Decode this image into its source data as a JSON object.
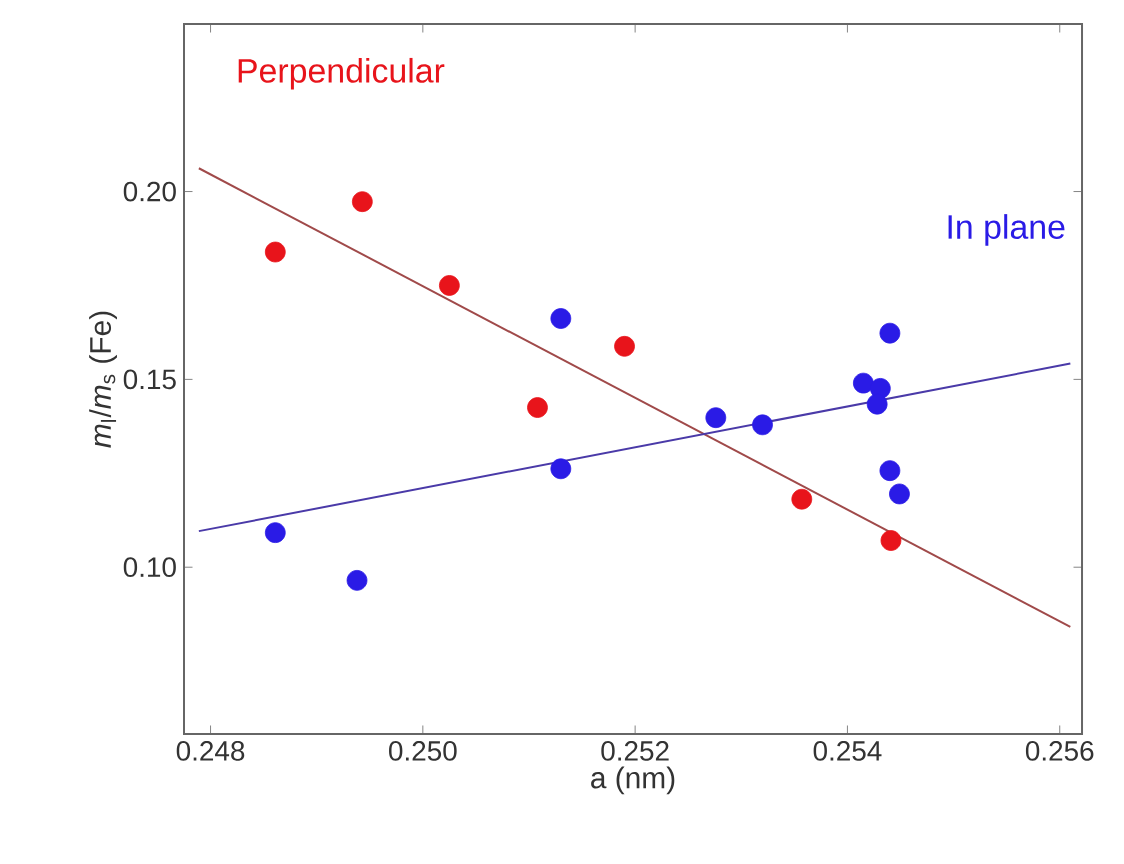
{
  "chart_data": {
    "type": "scatter",
    "xlabel": "a (nm)",
    "ylabel": "*m*$_{l}$/*m*$_{s}$ (Fe)",
    "xlim": [
      0.24775,
      0.25621
    ],
    "ylim": [
      0.0556,
      0.2446
    ],
    "xticks": [
      0.248,
      {
        "value": 0.25,
        "label": "0.250"
      },
      0.252,
      0.254,
      0.256
    ],
    "yticks": [
      {
        "value": 0.1,
        "label": "0.10"
      },
      {
        "value": 0.15,
        "label": "0.15"
      },
      {
        "value": 0.2,
        "label": "0.20"
      }
    ],
    "series": [
      {
        "name": "Perpendicular",
        "color": "#e8141b",
        "marker": "circle",
        "x": [
          0.24861,
          0.24943,
          0.25025,
          0.25108,
          0.2519,
          0.25357,
          0.25441
        ],
        "values": [
          0.1839,
          0.1973,
          0.175,
          0.1425,
          0.1588,
          0.1181,
          0.1071
        ]
      },
      {
        "name": "In plane",
        "color": "#2a1be6",
        "marker": "circle",
        "x": [
          0.24861,
          0.24938,
          0.2513,
          0.2513,
          0.25276,
          0.2532,
          0.25415,
          0.25431,
          0.25428,
          0.2544,
          0.2544,
          0.25449
        ],
        "values": [
          0.1092,
          0.0965,
          0.1662,
          0.1262,
          0.1398,
          0.1379,
          0.149,
          0.1476,
          0.1434,
          0.1623,
          0.1257,
          0.1195
        ]
      },
      {
        "color": "#a04a4a",
        "type": "line",
        "marker": "none",
        "x": [
          0.24789,
          0.2561
        ],
        "values": [
          0.2062,
          0.0841
        ]
      },
      {
        "color": "#4a3aa8",
        "type": "line",
        "marker": "none",
        "x": [
          0.24789,
          0.2561
        ],
        "values": [
          0.1096,
          0.1542
        ]
      }
    ]
  }
}
